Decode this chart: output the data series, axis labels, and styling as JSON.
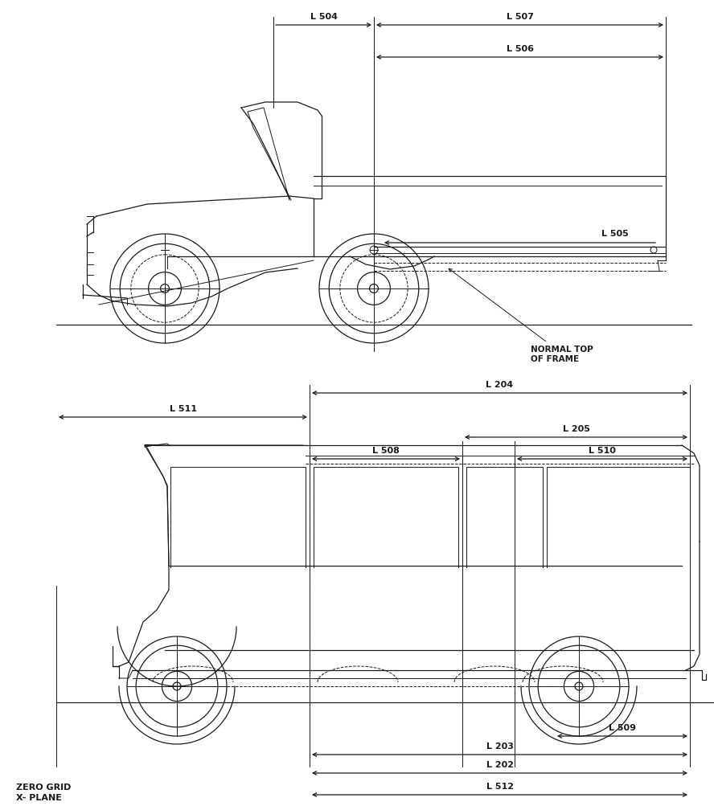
{
  "background_color": "#ffffff",
  "line_color": "#1a1a1a",
  "fig_width": 8.88,
  "fig_height": 10.04,
  "dpi": 100,
  "truck_dim": {
    "L504_label": "L 504",
    "L507_label": "L 507",
    "L506_label": "L 506",
    "L505_label": "L 505",
    "normal_top_label": "NORMAL TOP\nOF FRAME"
  },
  "van_dim": {
    "L204_label": "L 204",
    "L511_label": "L 511",
    "L205_label": "L 205",
    "L508_label": "L 508",
    "L510_label": "L 510",
    "L509_label": "L 509",
    "L203_label": "L 203",
    "L202_label": "L 202",
    "L512_label": "L 512",
    "zero_grid_label": "ZERO GRID\nX- PLANE"
  }
}
